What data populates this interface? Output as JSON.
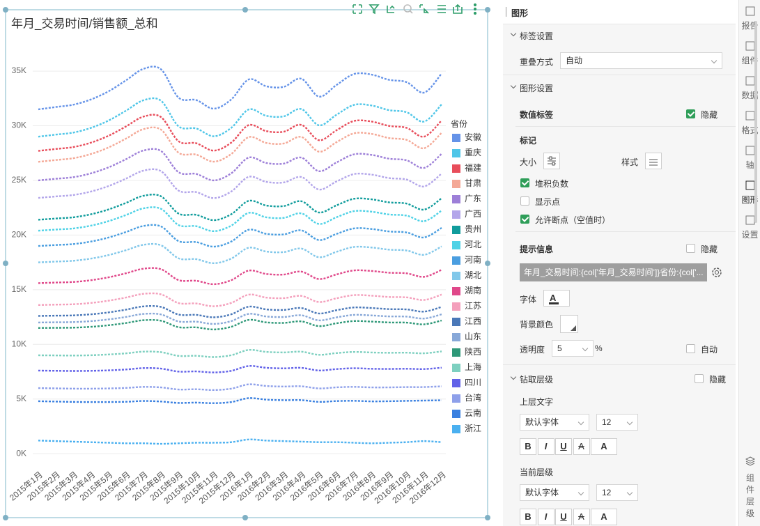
{
  "chart_data": {
    "type": "line",
    "stacked": true,
    "title": "年月_交易时间/销售额_总和",
    "legend_title": "省份",
    "legend": "right",
    "grid": true,
    "dashed": true,
    "categories": [
      "2015年1月",
      "2015年2月",
      "2015年3月",
      "2015年4月",
      "2015年5月",
      "2015年6月",
      "2015年7月",
      "2015年8月",
      "2015年9月",
      "2015年10月",
      "2015年11月",
      "2015年12月",
      "2016年1月",
      "2016年2月",
      "2016年3月",
      "2016年4月",
      "2016年5月",
      "2016年6月",
      "2016年7月",
      "2016年8月",
      "2016年9月",
      "2016年10月",
      "2016年11月",
      "2016年12月"
    ],
    "ylim": [
      -1200,
      38000
    ],
    "yticks": [
      {
        "value": 0,
        "label": "0K"
      },
      {
        "value": 5000,
        "label": "5K"
      },
      {
        "value": 10000,
        "label": "10K"
      },
      {
        "value": 15000,
        "label": "15K"
      },
      {
        "value": 20000,
        "label": "20K"
      },
      {
        "value": 25000,
        "label": "25K"
      },
      {
        "value": 30000,
        "label": "30K"
      },
      {
        "value": 35000,
        "label": "35K"
      }
    ],
    "series": [
      {
        "name": "安徽",
        "color": "#6593e8",
        "values": [
          2500,
          2525,
          2550,
          2600,
          2675,
          2775,
          2875,
          2875,
          2625,
          2600,
          2525,
          2600,
          2750,
          2700,
          2700,
          2775,
          2625,
          2725,
          2825,
          2825,
          2775,
          2750,
          2650,
          2825
        ]
      },
      {
        "name": "重庆",
        "color": "#4fc6e8",
        "values": [
          1300,
          1313,
          1326,
          1352,
          1391,
          1443,
          1495,
          1495,
          1365,
          1352,
          1313,
          1352,
          1430,
          1404,
          1404,
          1443,
          1365,
          1417,
          1469,
          1469,
          1443,
          1430,
          1378,
          1469
        ]
      },
      {
        "name": "福建",
        "color": "#e84d5b",
        "values": [
          1000,
          1010,
          1020,
          1040,
          1070,
          1110,
          1150,
          1150,
          1050,
          1040,
          1010,
          1040,
          1100,
          1080,
          1080,
          1110,
          1050,
          1090,
          1130,
          1130,
          1110,
          1100,
          1060,
          1130
        ]
      },
      {
        "name": "甘肃",
        "color": "#f4a896",
        "values": [
          1700,
          1717,
          1734,
          1768,
          1819,
          1887,
          1955,
          1955,
          1785,
          1768,
          1717,
          1768,
          1870,
          1836,
          1836,
          1887,
          1785,
          1853,
          1921,
          1921,
          1887,
          1870,
          1802,
          1921
        ]
      },
      {
        "name": "广东",
        "color": "#9d7fd8",
        "values": [
          1600,
          1616,
          1632,
          1664,
          1712,
          1776,
          1840,
          1840,
          1680,
          1664,
          1616,
          1664,
          1760,
          1728,
          1728,
          1776,
          1680,
          1744,
          1808,
          1808,
          1776,
          1760,
          1696,
          1808
        ]
      },
      {
        "name": "广西",
        "color": "#b3a6ea",
        "values": [
          2000,
          2020,
          2040,
          2080,
          2140,
          2220,
          2300,
          2300,
          2100,
          2080,
          2020,
          2080,
          2200,
          2160,
          2160,
          2220,
          2100,
          2180,
          2260,
          2260,
          2220,
          2200,
          2120,
          2260
        ]
      },
      {
        "name": "贵州",
        "color": "#109c9c",
        "values": [
          1000,
          1010,
          1020,
          1040,
          1070,
          1110,
          1150,
          1150,
          1050,
          1040,
          1010,
          1040,
          1100,
          1080,
          1080,
          1110,
          1050,
          1090,
          1130,
          1130,
          1110,
          1100,
          1060,
          1130
        ]
      },
      {
        "name": "河北",
        "color": "#4fd2e6",
        "values": [
          1400,
          1414,
          1428,
          1456,
          1498,
          1554,
          1610,
          1610,
          1470,
          1456,
          1414,
          1456,
          1540,
          1512,
          1512,
          1554,
          1470,
          1526,
          1582,
          1582,
          1554,
          1540,
          1484,
          1582
        ]
      },
      {
        "name": "河南",
        "color": "#4a9ee0",
        "values": [
          1500,
          1515,
          1530,
          1560,
          1605,
          1665,
          1725,
          1725,
          1575,
          1560,
          1515,
          1560,
          1650,
          1620,
          1620,
          1665,
          1575,
          1635,
          1695,
          1695,
          1665,
          1650,
          1590,
          1695
        ]
      },
      {
        "name": "湖北",
        "color": "#82c8ea",
        "values": [
          1900,
          1919,
          1938,
          1976,
          2033,
          2109,
          2185,
          2185,
          1995,
          1976,
          1919,
          1976,
          2090,
          2052,
          2052,
          2109,
          1995,
          2071,
          2147,
          2147,
          2109,
          2090,
          2014,
          2147
        ]
      },
      {
        "name": "湖南",
        "color": "#e0488a",
        "values": [
          2000,
          2020,
          2040,
          2080,
          2140,
          2220,
          2300,
          2300,
          2100,
          2080,
          2020,
          2080,
          2200,
          2160,
          2160,
          2220,
          2100,
          2180,
          2260,
          2260,
          2220,
          2200,
          2120,
          2260
        ]
      },
      {
        "name": "江苏",
        "color": "#f4a0bc",
        "values": [
          1000,
          1010,
          1020,
          1040,
          1070,
          1110,
          1150,
          1150,
          1050,
          1040,
          1010,
          1040,
          1100,
          1080,
          1080,
          1110,
          1050,
          1090,
          1130,
          1130,
          1110,
          1100,
          1060,
          1130
        ]
      },
      {
        "name": "江西",
        "color": "#4a78b8",
        "values": [
          600,
          606,
          612,
          624,
          642,
          666,
          690,
          690,
          630,
          624,
          606,
          624,
          660,
          648,
          648,
          666,
          630,
          654,
          678,
          678,
          666,
          660,
          636,
          678
        ]
      },
      {
        "name": "山东",
        "color": "#88a8d8",
        "values": [
          500,
          505,
          510,
          520,
          535,
          555,
          575,
          575,
          525,
          520,
          505,
          520,
          550,
          540,
          540,
          555,
          525,
          545,
          565,
          565,
          555,
          550,
          530,
          565
        ]
      },
      {
        "name": "陕西",
        "color": "#2e9878",
        "values": [
          2500,
          2525,
          2550,
          2600,
          2675,
          2775,
          2875,
          2875,
          2625,
          2600,
          2525,
          2600,
          2750,
          2700,
          2700,
          2775,
          2625,
          2725,
          2825,
          2825,
          2775,
          2750,
          2650,
          2825
        ]
      },
      {
        "name": "上海",
        "color": "#7ed0c0",
        "values": [
          1400,
          1407,
          1414,
          1428,
          1449,
          1477,
          1505,
          1505,
          1435,
          1428,
          1407,
          1428,
          1470,
          1456,
          1456,
          1477,
          1435,
          1463,
          1491,
          1491,
          1477,
          1470,
          1442,
          1491
        ]
      },
      {
        "name": "四川",
        "color": "#6262e8",
        "values": [
          1600,
          1608,
          1616,
          1632,
          1656,
          1688,
          1720,
          1720,
          1640,
          1632,
          1608,
          1632,
          1680,
          1664,
          1664,
          1688,
          1640,
          1672,
          1704,
          1704,
          1688,
          1680,
          1648,
          1704
        ]
      },
      {
        "name": "台湾",
        "color": "#8ea0ea",
        "values": [
          1200,
          1206,
          1212,
          1224,
          1242,
          1266,
          1290,
          1290,
          1230,
          1224,
          1206,
          1224,
          1260,
          1248,
          1248,
          1266,
          1230,
          1254,
          1278,
          1278,
          1266,
          1260,
          1236,
          1278
        ]
      },
      {
        "name": "云南",
        "color": "#3a80e0",
        "values": [
          3600,
          3618,
          3636,
          3672,
          3726,
          3798,
          3870,
          3870,
          3690,
          3672,
          3618,
          3672,
          3780,
          3744,
          3744,
          3798,
          3690,
          3762,
          3834,
          3834,
          3798,
          3780,
          3708,
          3834
        ]
      },
      {
        "name": "浙江",
        "color": "#4ab0f0",
        "values": [
          1200,
          1150,
          1100,
          1050,
          1000,
          950,
          950,
          900,
          950,
          1000,
          1000,
          1050,
          1300,
          1200,
          1150,
          1100,
          1050,
          1050,
          1000,
          950,
          1000,
          1050,
          1150,
          1050
        ]
      }
    ]
  },
  "panel": {
    "header": "图形",
    "label_settings": {
      "title": "标签设置",
      "overlap_label": "重叠方式",
      "overlap_value": "自动"
    },
    "shape_settings": {
      "title": "图形设置",
      "value_label": "数值标签",
      "value_label_hide": {
        "label": "隐藏",
        "checked": true
      },
      "marker": "标记",
      "size": "大小",
      "style": "样式",
      "options": [
        {
          "label": "堆积负数",
          "checked": true
        },
        {
          "label": "显示点",
          "checked": false
        },
        {
          "label": "允许断点（空值时）",
          "checked": true
        }
      ]
    },
    "tooltip": {
      "title": "提示信息",
      "hide": {
        "label": "隐藏",
        "checked": false
      },
      "template": "年月_交易时间:{col['年月_交易时间']}省份:{col['...",
      "font": "字体",
      "bg_color": "背景颜色",
      "opacity_label": "透明度",
      "opacity": 5,
      "opacity_unit": "%",
      "auto": {
        "label": "自动",
        "checked": false
      }
    },
    "drill": {
      "title": "钻取层级",
      "hide": {
        "label": "隐藏",
        "checked": false
      },
      "upper": {
        "label": "上层文字",
        "font": "默认字体",
        "size": 12
      },
      "current": {
        "label": "当前层级",
        "font": "默认字体",
        "size": 12
      }
    },
    "format_buttons": [
      "B",
      "I",
      "U",
      "A",
      "A"
    ]
  },
  "sidebar": {
    "tabs": [
      "报告",
      "组件",
      "数据",
      "格式",
      "轴",
      "图形",
      "设置"
    ],
    "active_tab": 5,
    "bottom": "组件层级"
  }
}
